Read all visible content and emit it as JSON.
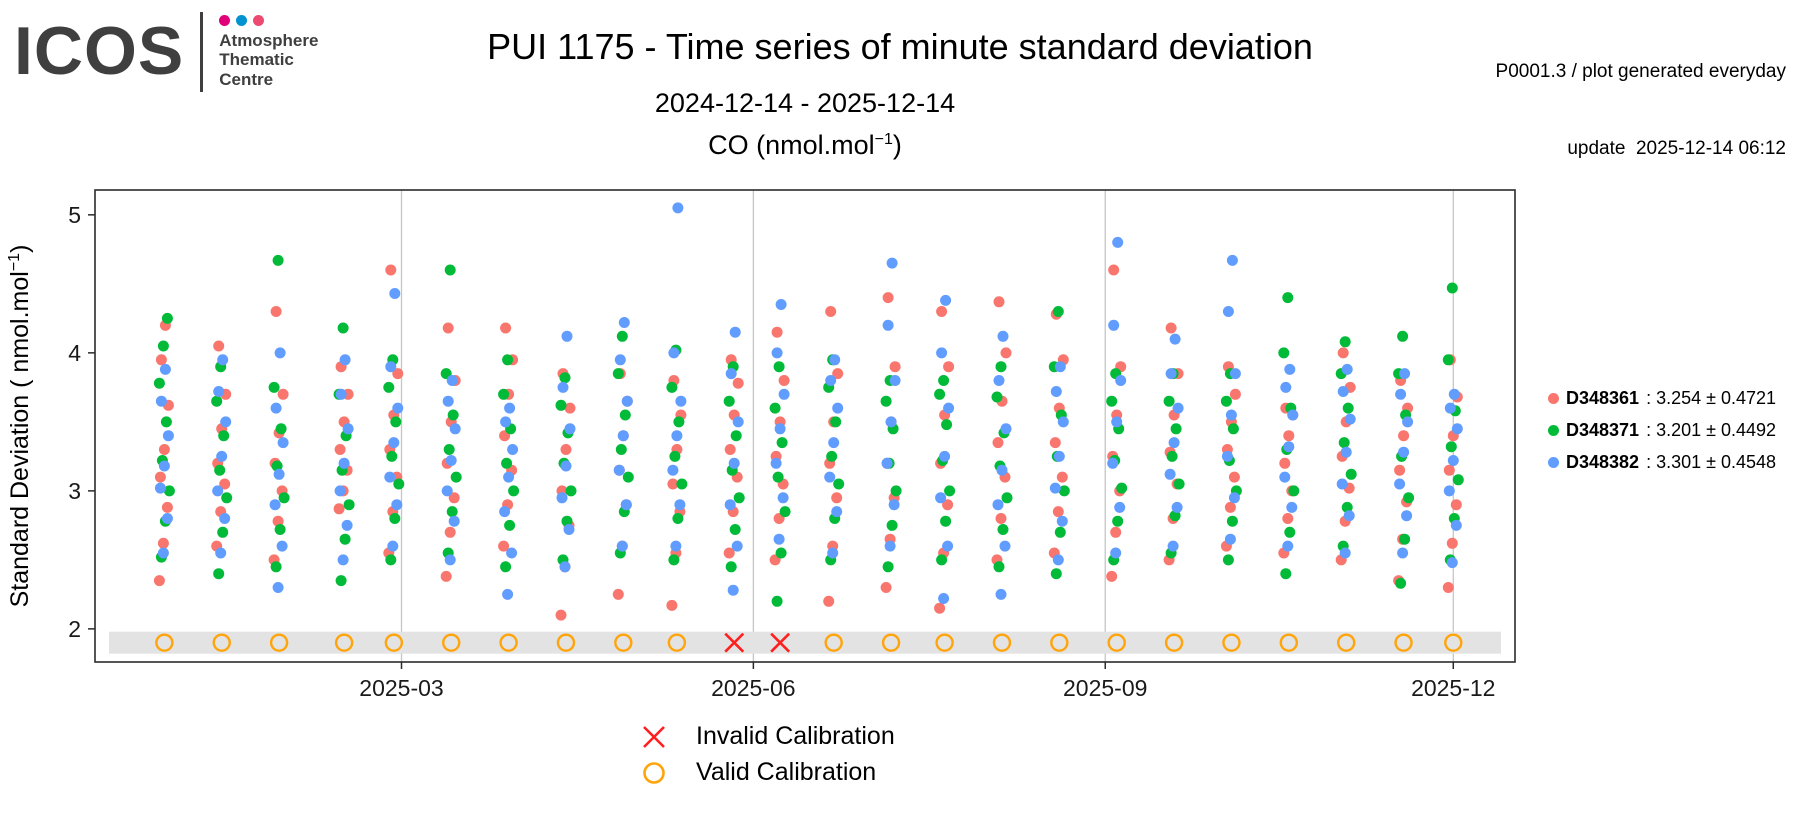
{
  "header": {
    "logo": {
      "text": "ICOS",
      "org_lines": [
        "Atmosphere",
        "Thematic",
        "Centre"
      ],
      "dot_colors": [
        "#e2007a",
        "#0092d1",
        "#ec4a71"
      ]
    },
    "title": "PUI 1175 - Time series of minute standard deviation",
    "date_range": "2024-12-14 - 2025-12-14",
    "meta_line1": "P0001.3 / plot generated everyday",
    "meta_line2": "update  2025-12-14 06:12"
  },
  "chart_data": {
    "type": "scatter",
    "subtitle": {
      "prefix": "CO (nmol.mol",
      "sup": "−1",
      "suffix": ")"
    },
    "ylabel": {
      "prefix": "Standard Deviation ( nmol.mol",
      "sup": "−1",
      "suffix": ")"
    },
    "x_range": [
      "2024-12-14",
      "2025-12-14"
    ],
    "x_domain_days": 365,
    "x_ticks": [
      {
        "label": "2025-03",
        "day": 77
      },
      {
        "label": "2025-06",
        "day": 169
      },
      {
        "label": "2025-09",
        "day": 261
      },
      {
        "label": "2025-12",
        "day": 352
      }
    ],
    "y_ticks": [
      2,
      3,
      4,
      5
    ],
    "ylim": [
      1.76,
      5.18
    ],
    "grid_color": "#c6c6c6",
    "series": [
      {
        "id": "r",
        "name": "D348361",
        "stats": "3.254 ± 0.4721",
        "color": "#F8766D"
      },
      {
        "id": "g",
        "name": "D348371",
        "stats": "3.201 ± 0.4492",
        "color": "#00BA38"
      },
      {
        "id": "b",
        "name": "D348382",
        "stats": "3.301 ± 0.4548",
        "color": "#619CFF"
      }
    ],
    "calibration_band": {
      "y": 1.9,
      "color": "#e3e3e3"
    },
    "cal_legend": [
      {
        "type": "invalid",
        "symbol": "x",
        "label": "Invalid Calibration",
        "color": "#ff1f1f"
      },
      {
        "type": "valid",
        "symbol": "circle",
        "label": "Valid Calibration",
        "color": "#ffa40b"
      }
    ],
    "clusters": [
      {
        "day": 15,
        "cal": "valid",
        "r": [
          2.35,
          2.62,
          2.88,
          3.1,
          3.3,
          3.62,
          3.95,
          4.2
        ],
        "g": [
          2.52,
          2.78,
          3.0,
          3.22,
          3.5,
          3.78,
          4.05,
          4.25
        ],
        "b": [
          2.55,
          2.8,
          3.02,
          3.18,
          3.4,
          3.65,
          3.88
        ]
      },
      {
        "day": 30,
        "cal": "valid",
        "r": [
          2.6,
          2.85,
          3.05,
          3.2,
          3.45,
          3.7,
          4.05
        ],
        "g": [
          2.4,
          2.7,
          2.95,
          3.15,
          3.4,
          3.65,
          3.9
        ],
        "b": [
          2.55,
          2.8,
          3.0,
          3.25,
          3.5,
          3.72,
          3.95
        ]
      },
      {
        "day": 45,
        "cal": "valid",
        "r": [
          2.5,
          2.78,
          3.0,
          3.2,
          3.42,
          3.7,
          4.3
        ],
        "g": [
          2.45,
          2.72,
          2.95,
          3.18,
          3.45,
          3.75,
          4.67
        ],
        "b": [
          2.3,
          2.6,
          2.9,
          3.12,
          3.35,
          3.6,
          4.0
        ]
      },
      {
        "day": 62,
        "cal": "valid",
        "r": [
          2.87,
          3.0,
          3.15,
          3.3,
          3.5,
          3.7,
          3.9
        ],
        "g": [
          2.35,
          2.65,
          2.9,
          3.15,
          3.4,
          3.7,
          4.18
        ],
        "b": [
          2.5,
          2.75,
          3.0,
          3.2,
          3.45,
          3.7,
          3.95
        ]
      },
      {
        "day": 75,
        "cal": "valid",
        "r": [
          2.55,
          2.85,
          3.1,
          3.3,
          3.55,
          3.85,
          4.6
        ],
        "g": [
          2.5,
          2.8,
          3.05,
          3.25,
          3.5,
          3.75,
          3.95
        ],
        "b": [
          2.6,
          2.9,
          3.1,
          3.35,
          3.6,
          3.9,
          4.43
        ]
      },
      {
        "day": 90,
        "cal": "valid",
        "r": [
          2.38,
          2.7,
          2.95,
          3.2,
          3.5,
          3.8,
          4.18
        ],
        "g": [
          2.55,
          2.85,
          3.1,
          3.3,
          3.55,
          3.85,
          4.6
        ],
        "b": [
          2.5,
          2.78,
          3.0,
          3.22,
          3.45,
          3.65,
          3.8
        ]
      },
      {
        "day": 105,
        "cal": "valid",
        "r": [
          2.6,
          2.9,
          3.15,
          3.4,
          3.7,
          3.95,
          4.18
        ],
        "g": [
          2.45,
          2.75,
          3.0,
          3.2,
          3.45,
          3.7,
          3.95
        ],
        "b": [
          2.25,
          2.55,
          2.85,
          3.1,
          3.3,
          3.5,
          3.6
        ]
      },
      {
        "day": 120,
        "cal": "valid",
        "r": [
          2.1,
          2.45,
          2.75,
          3.0,
          3.3,
          3.6,
          3.85
        ],
        "g": [
          2.5,
          2.78,
          3.0,
          3.2,
          3.42,
          3.62,
          3.82
        ],
        "b": [
          2.45,
          2.72,
          2.95,
          3.18,
          3.45,
          3.75,
          4.12
        ]
      },
      {
        "day": 135,
        "cal": "valid",
        "r": [
          2.25,
          2.6,
          2.9,
          3.15,
          3.4,
          3.65,
          3.85
        ],
        "g": [
          2.55,
          2.85,
          3.1,
          3.3,
          3.55,
          3.85,
          4.12
        ],
        "b": [
          2.6,
          2.9,
          3.15,
          3.4,
          3.65,
          3.95,
          4.22
        ]
      },
      {
        "day": 149,
        "cal": "valid",
        "r": [
          2.17,
          2.55,
          2.85,
          3.05,
          3.3,
          3.55,
          3.8
        ],
        "g": [
          2.5,
          2.8,
          3.05,
          3.25,
          3.5,
          3.75,
          4.02
        ],
        "b": [
          2.6,
          2.9,
          3.15,
          3.4,
          3.65,
          4.0,
          5.05
        ]
      },
      {
        "day": 164,
        "cal": "invalid",
        "r": [
          2.55,
          2.85,
          3.1,
          3.3,
          3.55,
          3.78,
          3.95
        ],
        "g": [
          2.45,
          2.72,
          2.95,
          3.15,
          3.4,
          3.65,
          3.9
        ],
        "b": [
          2.28,
          2.6,
          2.9,
          3.2,
          3.5,
          3.85,
          4.15
        ]
      },
      {
        "day": 176,
        "cal": "invalid",
        "r": [
          2.5,
          2.8,
          3.05,
          3.25,
          3.5,
          3.8,
          4.15
        ],
        "g": [
          2.2,
          2.55,
          2.85,
          3.1,
          3.35,
          3.6,
          3.9
        ],
        "b": [
          2.65,
          2.95,
          3.2,
          3.45,
          3.7,
          4.0,
          4.35
        ]
      },
      {
        "day": 190,
        "cal": "valid",
        "r": [
          2.2,
          2.6,
          2.95,
          3.2,
          3.5,
          3.85,
          4.3
        ],
        "g": [
          2.5,
          2.8,
          3.05,
          3.25,
          3.5,
          3.75,
          3.95
        ],
        "b": [
          2.55,
          2.85,
          3.1,
          3.35,
          3.6,
          3.8,
          3.95
        ]
      },
      {
        "day": 205,
        "cal": "valid",
        "r": [
          2.3,
          2.65,
          2.95,
          3.2,
          3.5,
          3.9,
          4.4
        ],
        "g": [
          2.45,
          2.75,
          3.0,
          3.2,
          3.45,
          3.65,
          3.8
        ],
        "b": [
          2.6,
          2.9,
          3.2,
          3.5,
          3.8,
          4.2,
          4.65
        ]
      },
      {
        "day": 219,
        "cal": "valid",
        "r": [
          2.15,
          2.55,
          2.9,
          3.2,
          3.55,
          3.9,
          4.3
        ],
        "g": [
          2.5,
          2.78,
          3.0,
          3.22,
          3.48,
          3.7,
          3.8
        ],
        "b": [
          2.22,
          2.6,
          2.95,
          3.25,
          3.6,
          4.0,
          4.38
        ]
      },
      {
        "day": 234,
        "cal": "valid",
        "r": [
          2.5,
          2.8,
          3.1,
          3.35,
          3.65,
          4.0,
          4.37
        ],
        "g": [
          2.45,
          2.72,
          2.95,
          3.18,
          3.42,
          3.68,
          3.9
        ],
        "b": [
          2.25,
          2.6,
          2.9,
          3.15,
          3.45,
          3.8,
          4.12
        ]
      },
      {
        "day": 249,
        "cal": "valid",
        "r": [
          2.55,
          2.85,
          3.1,
          3.35,
          3.6,
          3.95,
          4.28
        ],
        "g": [
          2.4,
          2.7,
          3.0,
          3.25,
          3.55,
          3.9,
          4.3
        ],
        "b": [
          2.5,
          2.78,
          3.02,
          3.25,
          3.5,
          3.72,
          3.9
        ]
      },
      {
        "day": 264,
        "cal": "valid",
        "r": [
          2.38,
          2.7,
          3.0,
          3.25,
          3.55,
          3.9,
          4.6
        ],
        "g": [
          2.5,
          2.78,
          3.02,
          3.22,
          3.45,
          3.65,
          3.85
        ],
        "b": [
          2.55,
          2.88,
          3.2,
          3.5,
          3.8,
          4.2,
          4.8
        ]
      },
      {
        "day": 279,
        "cal": "valid",
        "r": [
          2.5,
          2.8,
          3.05,
          3.28,
          3.55,
          3.85,
          4.18
        ],
        "g": [
          2.55,
          2.82,
          3.05,
          3.25,
          3.45,
          3.65,
          3.85
        ],
        "b": [
          2.6,
          2.88,
          3.12,
          3.35,
          3.6,
          3.85,
          4.1
        ]
      },
      {
        "day": 294,
        "cal": "valid",
        "r": [
          2.6,
          2.88,
          3.1,
          3.3,
          3.5,
          3.7,
          3.9
        ],
        "g": [
          2.5,
          2.78,
          3.0,
          3.22,
          3.45,
          3.65,
          3.85
        ],
        "b": [
          2.65,
          2.95,
          3.25,
          3.55,
          3.85,
          4.3,
          4.67
        ]
      },
      {
        "day": 309,
        "cal": "valid",
        "r": [
          2.55,
          2.8,
          3.0,
          3.2,
          3.4,
          3.55,
          3.6
        ],
        "g": [
          2.4,
          2.7,
          3.0,
          3.3,
          3.6,
          4.0,
          4.4
        ],
        "b": [
          2.6,
          2.88,
          3.1,
          3.32,
          3.55,
          3.75,
          3.88
        ]
      },
      {
        "day": 324,
        "cal": "valid",
        "r": [
          2.5,
          2.78,
          3.02,
          3.25,
          3.5,
          3.75,
          4.0
        ],
        "g": [
          2.6,
          2.88,
          3.12,
          3.35,
          3.6,
          3.85,
          4.08
        ],
        "b": [
          2.55,
          2.82,
          3.05,
          3.28,
          3.52,
          3.72,
          3.88
        ]
      },
      {
        "day": 339,
        "cal": "valid",
        "r": [
          2.35,
          2.65,
          2.92,
          3.15,
          3.4,
          3.6,
          3.8
        ],
        "g": [
          2.33,
          2.65,
          2.95,
          3.25,
          3.55,
          3.85,
          4.12
        ],
        "b": [
          2.55,
          2.82,
          3.05,
          3.28,
          3.5,
          3.7,
          3.85
        ]
      },
      {
        "day": 352,
        "cal": "valid",
        "r": [
          2.3,
          2.62,
          2.9,
          3.15,
          3.4,
          3.68,
          3.95
        ],
        "g": [
          2.5,
          2.8,
          3.08,
          3.32,
          3.58,
          3.95,
          4.47
        ],
        "b": [
          2.48,
          2.75,
          3.0,
          3.22,
          3.45,
          3.6,
          3.7
        ]
      }
    ]
  }
}
